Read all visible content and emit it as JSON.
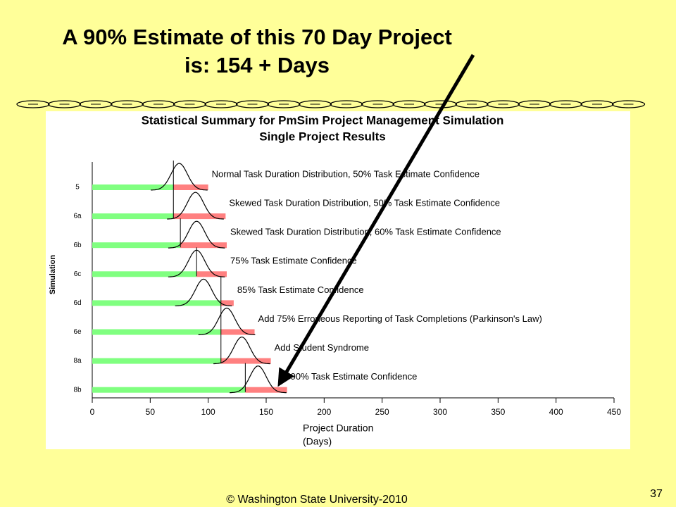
{
  "slide": {
    "title": [
      "A 90% Estimate of this 70 Day Project",
      "is:  154 + Days"
    ],
    "footer": "© Washington State University-2010",
    "page": "37"
  },
  "chart_data": {
    "type": "bar",
    "orientation": "horizontal",
    "stacked": true,
    "title": "Statistical Summary for PmSim Project Management Simulation",
    "subtitle": "Single Project Results",
    "ylabel": "Simulation",
    "xlabel": "Project Duration",
    "xlabel_unit": "(Days)",
    "categories": [
      "5",
      "6a",
      "6b",
      "6c",
      "6d",
      "6e",
      "8a",
      "8b"
    ],
    "series": [
      {
        "color": "#80ff80",
        "values": [
          70,
          70,
          76,
          90,
          111,
          111,
          111,
          132
        ]
      },
      {
        "color": "#ff8080",
        "values": [
          30,
          45,
          40,
          26,
          11,
          29,
          43,
          36
        ]
      }
    ],
    "peaks": [
      75,
      89,
      90,
      90,
      96,
      116,
      129,
      143
    ],
    "annotations": [
      "Normal Task Duration Distribution, 50% Task  Estimate Confidence",
      "Skewed Task Duration Distribution, 50% Task  Estimate Confidence",
      "Skewed Task Duration Distribution, 60% Task  Estimate Confidence",
      "75% Task  Estimate Confidence",
      "85% Task  Estimate Confidence",
      "Add 75% Erroneous Reporting of Task Completions (Parkinson's Law)",
      "Add Student Syndrome",
      "90% Task Estimate Confidence"
    ],
    "xlim": [
      0,
      450
    ],
    "xticks": [
      0,
      50,
      100,
      150,
      200,
      250,
      300,
      350,
      400,
      450
    ]
  }
}
